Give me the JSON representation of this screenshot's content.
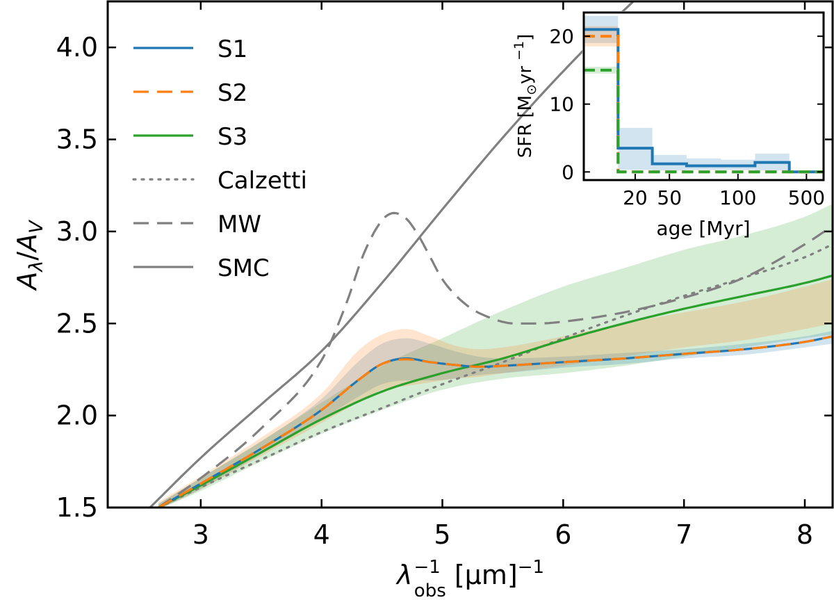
{
  "chart_data": [
    {
      "type": "line",
      "title": "",
      "xlabel_main": "λ",
      "xlabel_sup": "−1",
      "xlabel_sub": "obs",
      "xlabel_unit": " [μm]",
      "xlabel_unit_sup": "−1",
      "ylabel": "A_λ/A_V",
      "ylabel_A": "A",
      "ylabel_lambda": "λ",
      "ylabel_slash": "/",
      "ylabel_V": "V",
      "xlim": [
        2.23,
        8.23
      ],
      "ylim": [
        1.5,
        4.25
      ],
      "xticks": [
        3,
        4,
        5,
        6,
        7,
        8
      ],
      "yticks": [
        1.5,
        2.0,
        2.5,
        3.0,
        3.5,
        4.0
      ],
      "xtick_labels": [
        "3",
        "4",
        "5",
        "6",
        "7",
        "8"
      ],
      "ytick_labels": [
        "1.5",
        "2.0",
        "2.5",
        "3.0",
        "3.5",
        "4.0"
      ],
      "legend_position": "top-left",
      "legend": [
        "S1",
        "S2",
        "S3",
        "Calzetti",
        "MW",
        "SMC"
      ],
      "colors": {
        "S1": "#1f77b4",
        "S2": "#ff7f0e",
        "S3": "#2ca02c",
        "reference": "#808080"
      },
      "series": [
        {
          "name": "S1",
          "style": "solid",
          "x": [
            2.65,
            3.0,
            3.5,
            4.0,
            4.3,
            4.5,
            4.7,
            4.9,
            5.1,
            5.3,
            5.5,
            6.0,
            6.5,
            7.0,
            7.5,
            8.0,
            8.23
          ],
          "y": [
            1.5,
            1.63,
            1.82,
            2.03,
            2.19,
            2.28,
            2.31,
            2.29,
            2.275,
            2.265,
            2.27,
            2.29,
            2.31,
            2.335,
            2.36,
            2.4,
            2.43
          ],
          "band_lo": [
            1.49,
            1.6,
            1.79,
            1.98,
            2.1,
            2.17,
            2.19,
            2.19,
            2.2,
            2.22,
            2.23,
            2.26,
            2.28,
            2.31,
            2.33,
            2.37,
            2.39
          ],
          "band_hi": [
            1.52,
            1.66,
            1.86,
            2.09,
            2.29,
            2.39,
            2.42,
            2.39,
            2.35,
            2.32,
            2.31,
            2.32,
            2.34,
            2.36,
            2.39,
            2.43,
            2.46
          ]
        },
        {
          "name": "S2",
          "style": "dashed",
          "x": [
            2.65,
            3.0,
            3.5,
            4.0,
            4.3,
            4.5,
            4.7,
            4.9,
            5.1,
            5.3,
            5.5,
            6.0,
            6.5,
            7.0,
            7.5,
            8.0,
            8.23
          ],
          "y": [
            1.5,
            1.63,
            1.82,
            2.03,
            2.19,
            2.28,
            2.305,
            2.29,
            2.275,
            2.265,
            2.27,
            2.29,
            2.31,
            2.335,
            2.36,
            2.4,
            2.43
          ],
          "band_lo": [
            1.49,
            1.6,
            1.78,
            1.96,
            2.07,
            2.14,
            2.16,
            2.18,
            2.2,
            2.21,
            2.23,
            2.27,
            2.32,
            2.37,
            2.41,
            2.47,
            2.5
          ],
          "band_hi": [
            1.53,
            1.67,
            1.88,
            2.12,
            2.35,
            2.44,
            2.47,
            2.43,
            2.38,
            2.36,
            2.37,
            2.43,
            2.5,
            2.56,
            2.62,
            2.7,
            2.74
          ]
        },
        {
          "name": "S3",
          "style": "solid",
          "x": [
            2.65,
            3.0,
            3.5,
            4.0,
            4.5,
            5.0,
            5.5,
            6.0,
            6.5,
            7.0,
            7.5,
            8.0,
            8.23
          ],
          "y": [
            1.5,
            1.62,
            1.8,
            1.98,
            2.13,
            2.23,
            2.31,
            2.41,
            2.5,
            2.58,
            2.65,
            2.72,
            2.76
          ],
          "band_lo": [
            1.49,
            1.59,
            1.75,
            1.9,
            2.03,
            2.14,
            2.2,
            2.23,
            2.27,
            2.32,
            2.37,
            2.42,
            2.44
          ],
          "band_hi": [
            1.52,
            1.66,
            1.86,
            2.07,
            2.27,
            2.42,
            2.57,
            2.7,
            2.8,
            2.9,
            2.98,
            3.08,
            3.15
          ]
        },
        {
          "name": "Calzetti",
          "style": "dotted",
          "x": [
            2.65,
            3.0,
            3.5,
            4.0,
            4.5,
            5.0,
            5.5,
            6.0,
            6.5,
            7.0,
            7.5,
            8.0,
            8.23
          ],
          "y": [
            1.5,
            1.61,
            1.76,
            1.91,
            2.04,
            2.17,
            2.29,
            2.42,
            2.54,
            2.65,
            2.75,
            2.86,
            2.93
          ]
        },
        {
          "name": "MW",
          "style": "dashed",
          "x": [
            2.65,
            3.0,
            3.5,
            4.0,
            4.2,
            4.35,
            4.5,
            4.6,
            4.7,
            4.8,
            4.9,
            5.0,
            5.2,
            5.4,
            5.6,
            5.8,
            6.0,
            6.5,
            7.0,
            7.5,
            8.0,
            8.23
          ],
          "y": [
            1.5,
            1.66,
            1.93,
            2.3,
            2.6,
            2.88,
            3.06,
            3.1,
            3.07,
            2.98,
            2.86,
            2.74,
            2.6,
            2.53,
            2.5,
            2.5,
            2.51,
            2.56,
            2.64,
            2.75,
            2.93,
            3.03
          ]
        },
        {
          "name": "SMC",
          "style": "solid",
          "x": [
            2.58,
            3.0,
            3.5,
            4.0,
            4.5,
            5.0,
            5.5,
            6.0,
            6.5,
            7.0,
            7.55
          ],
          "y": [
            1.5,
            1.77,
            2.06,
            2.35,
            2.72,
            3.12,
            3.51,
            3.87,
            4.2,
            4.5,
            4.85
          ]
        }
      ]
    },
    {
      "type": "line",
      "title": "",
      "xlabel": "age [Myr]",
      "ylabel_main": "SFR [M",
      "ylabel_sub": "⊙",
      "ylabel_tail": "yr",
      "ylabel_sup": "−1",
      "ylabel_close": "]",
      "xscale": "piecewise-categorical",
      "xlim": [
        0,
        7
      ],
      "ylim": [
        -1.2,
        23.5
      ],
      "xticks_at": [
        1.5,
        2.5,
        4.5,
        6.5
      ],
      "xtick_labels": [
        "20",
        "50",
        "100",
        "500"
      ],
      "yticks": [
        0,
        10,
        20
      ],
      "ytick_labels": [
        "0",
        "10",
        "20"
      ],
      "bin_edges": [
        0,
        1,
        2,
        3,
        4,
        5,
        6,
        7
      ],
      "series": [
        {
          "name": "S1",
          "style": "solid",
          "values": [
            21,
            3.5,
            1.2,
            0.9,
            0.9,
            1.4,
            0
          ],
          "band_lo": [
            19,
            0.3,
            0.2,
            0.3,
            0.3,
            0.2,
            0
          ],
          "band_hi": [
            23,
            6.5,
            2.5,
            2.0,
            1.8,
            2.7,
            0
          ]
        },
        {
          "name": "S2",
          "style": "dashed",
          "values": [
            20,
            0,
            0,
            0,
            0,
            0,
            0
          ],
          "band_lo": [
            18.5,
            0,
            0,
            0,
            0,
            0,
            0
          ],
          "band_hi": [
            21.5,
            0,
            0,
            0,
            0,
            0,
            0
          ]
        },
        {
          "name": "S3",
          "style": "dashed",
          "values": [
            15,
            0,
            0,
            0,
            0,
            0,
            0
          ],
          "band_lo": [
            14.5,
            0,
            0,
            0,
            0,
            0,
            0
          ],
          "band_hi": [
            15.5,
            0,
            0,
            0,
            0,
            0,
            0
          ]
        }
      ]
    }
  ]
}
